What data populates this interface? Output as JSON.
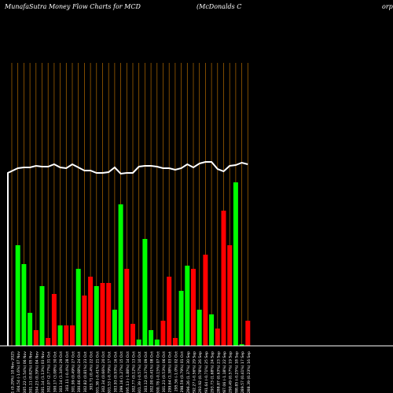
{
  "header": {
    "left": "MunafaSutra  Money Flow  Charts for MCD",
    "center": "(McDonalds C",
    "right": "orp"
  },
  "chart_data": {
    "type": "bar",
    "title": "MunafaSutra  Money Flow  Charts for MCD",
    "colors": {
      "background": "#000000",
      "up": "#00ff00",
      "down": "#ff0000",
      "grid": "#b36b00",
      "line": "#ffffff",
      "baseline": "#ffffff"
    },
    "grid": true,
    "ylim": [
      0,
      100
    ],
    "categories": [
      "251.11 (0.29%) 10 Nov 2025",
      "304.54 (-1.6%) 07 Nov",
      "305.22 (1.54%) 06 Nov",
      "301.11 (0.82%) 05 Nov",
      "304.23 (0.39%) 04 Nov",
      "301.14 (1.13%) 03 Nov",
      "302.07 (2.77%) 31 Oct",
      "300.17 (3.08%) 30 Oct",
      "303.14 (1.34%) 29 Oct",
      "303.11 (-0.4%) 28 Oct",
      "301.99 (0.49%) 27 Oct",
      "300.66 (0.08%) 24 Oct",
      "302.82 (0.81%) 23 Oct",
      "303.71 (0.4%) 22 Oct",
      "301.38 (-0.41%) 21 Oct",
      "302.34 (0.66%) 20 Oct",
      "301.53 (-0.79%) 17 Oct",
      "303.93 (0.93%) 16 Oct",
      "299.16 (1.27%) 15 Oct",
      "295.13 (-1.88%) 14 Oct",
      "302.77 (0.12%) 13 Oct",
      "301.39 (-0.57%) 10 Oct",
      "303.12 (0.37%) 09 Oct",
      "302.00 (0.41%) 08 Oct",
      "300.78 (-0.15%) 07 Oct",
      "301.23 (0.53%) 06 Oct",
      "299.64 (1.38%) 03 Oct",
      "295.56 (-1.0%) 02 Oct",
      "298.59 (0.79%) 01 Oct",
      "296.26 (1.37%) 30 Sep",
      "292.27 (-0.56%) 29 Sep",
      "293.92 (0.78%) 26 Sep",
      "291.64 (-0.71%) 25 Sep",
      "293.73 (1.68%) 24 Sep",
      "288.87 (0.63%) 23 Sep",
      "287.06 (-1.18%) 22 Sep",
      "290.49 (0.57%) 19 Sep",
      "288.85 (-0.25%) 18 Sep",
      "289.57 (0.41%) 17 Sep",
      "288.39 (0.23%) 16 Sep"
    ],
    "series": [
      {
        "kind": "bar",
        "values": [
          0,
          64,
          52,
          21,
          10,
          38,
          5,
          33,
          13,
          13,
          13,
          49,
          32,
          44,
          38,
          40,
          40,
          23,
          90,
          49,
          14,
          4,
          68,
          10,
          4,
          16,
          44,
          5,
          35,
          51,
          49,
          23,
          58,
          20,
          11,
          86,
          64,
          104,
          1,
          16
        ],
        "colors": [
          "up",
          "up",
          "up",
          "up",
          "down",
          "up",
          "down",
          "down",
          "up",
          "down",
          "down",
          "up",
          "down",
          "down",
          "up",
          "down",
          "down",
          "up",
          "up",
          "down",
          "down",
          "up",
          "up",
          "up",
          "up",
          "down",
          "down",
          "down",
          "up",
          "up",
          "down",
          "up",
          "down",
          "up",
          "down",
          "down",
          "down",
          "up",
          "up",
          "down"
        ]
      },
      {
        "kind": "line",
        "values": [
          110,
          113,
          113.5,
          113.5,
          114.5,
          114,
          114,
          115.5,
          113.5,
          113,
          115.5,
          113.5,
          111.5,
          111.5,
          110,
          110,
          110.5,
          113.5,
          109.5,
          110,
          110,
          114,
          114.5,
          114.5,
          114,
          113,
          113,
          112,
          113,
          115.5,
          113.5,
          116,
          117,
          117,
          112.5,
          111,
          114.5,
          115,
          116.5,
          115.5
        ]
      }
    ]
  }
}
